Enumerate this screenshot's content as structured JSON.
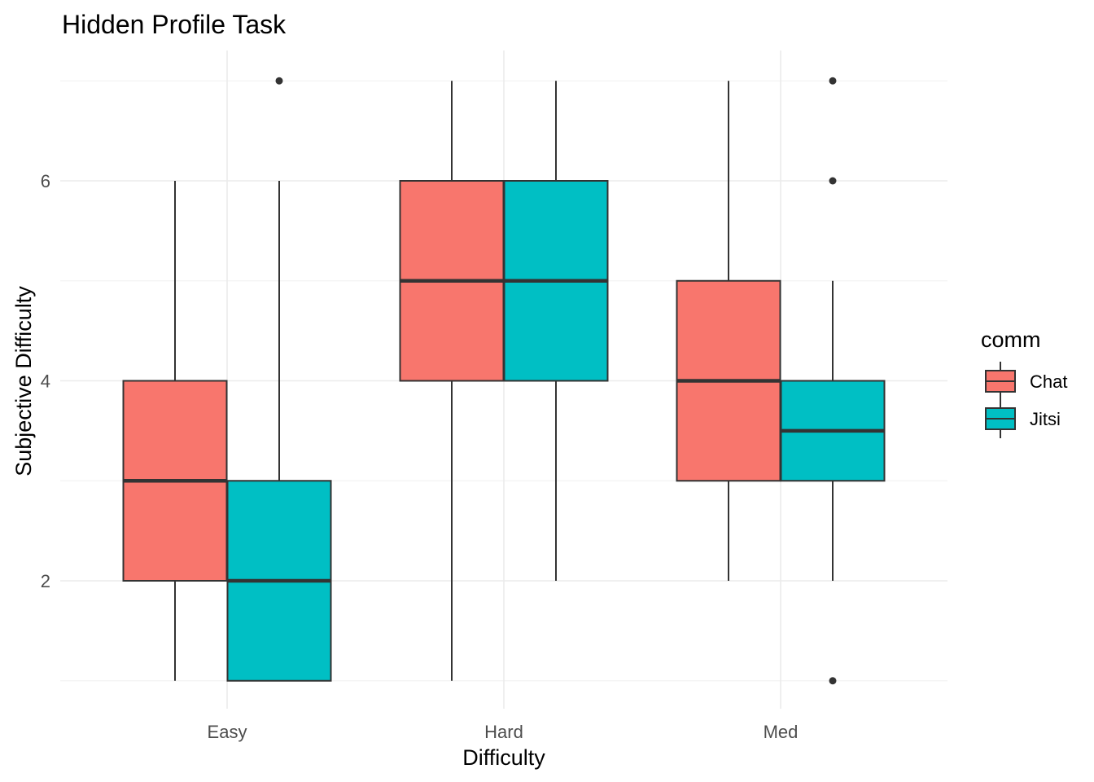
{
  "chart_data": {
    "type": "boxplot",
    "title": "Hidden Profile Task",
    "xlabel": "Difficulty",
    "ylabel": "Subjective Difficulty",
    "categories": [
      "Easy",
      "Hard",
      "Med"
    ],
    "y_ticks": [
      2,
      4,
      6
    ],
    "ylim": [
      0.95,
      7.35
    ],
    "grid": true,
    "legend": {
      "title": "comm",
      "position": "right",
      "entries": [
        "Chat",
        "Jitsi"
      ]
    },
    "series": [
      {
        "name": "Chat",
        "color": "#F8766D",
        "boxes": [
          {
            "category": "Easy",
            "whisker_low": 1,
            "q1": 2,
            "median": 3,
            "q3": 4,
            "whisker_high": 6,
            "outliers": []
          },
          {
            "category": "Hard",
            "whisker_low": 1,
            "q1": 4,
            "median": 5,
            "q3": 6,
            "whisker_high": 7,
            "outliers": []
          },
          {
            "category": "Med",
            "whisker_low": 2,
            "q1": 3,
            "median": 4,
            "q3": 5,
            "whisker_high": 7,
            "outliers": []
          }
        ]
      },
      {
        "name": "Jitsi",
        "color": "#00BFC4",
        "boxes": [
          {
            "category": "Easy",
            "whisker_low": 1,
            "q1": 1,
            "median": 2,
            "q3": 3,
            "whisker_high": 6,
            "outliers": [
              7
            ]
          },
          {
            "category": "Hard",
            "whisker_low": 2,
            "q1": 4,
            "median": 5,
            "q3": 6,
            "whisker_high": 7,
            "outliers": []
          },
          {
            "category": "Med",
            "whisker_low": 2,
            "q1": 3,
            "median": 3.5,
            "q3": 4,
            "whisker_high": 5,
            "outliers": [
              1,
              6,
              7
            ]
          }
        ]
      }
    ]
  }
}
